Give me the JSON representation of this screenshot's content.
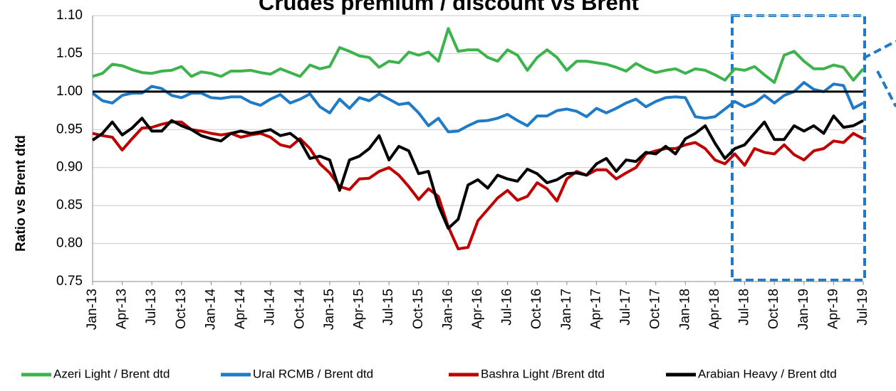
{
  "chart_data": {
    "type": "line",
    "title": "Crudes premium / discount vs Brent",
    "y_label": "Ratio vs Brent dtd",
    "categories": [
      "Jan-13",
      null,
      null,
      "Apr-13",
      null,
      null,
      "Jul-13",
      null,
      null,
      "Oct-13",
      null,
      null,
      "Jan-14",
      null,
      null,
      "Apr-14",
      null,
      null,
      "Jul-14",
      null,
      null,
      "Oct-14",
      null,
      null,
      "Jan-15",
      null,
      null,
      "Apr-15",
      null,
      null,
      "Jul-15",
      null,
      null,
      "Oct-15",
      null,
      null,
      "Jan-16",
      null,
      null,
      "Apr-16",
      null,
      null,
      "Jul-16",
      null,
      null,
      "Oct-16",
      null,
      null,
      "Jan-17",
      null,
      null,
      "Apr-17",
      null,
      null,
      "Jul-17",
      null,
      null,
      "Oct-17",
      null,
      null,
      "Jan-18",
      null,
      null,
      "Apr-18",
      null,
      null,
      "Jul-18",
      null,
      null,
      "Oct-18",
      null,
      null,
      "Jan-19",
      null,
      null,
      "Apr-19",
      null,
      null,
      "Jul-19"
    ],
    "series": [
      {
        "name": "Azeri Light / Brent dtd",
        "color": "#3cb44b",
        "values": [
          1.02,
          1.024,
          1.036,
          1.034,
          1.029,
          1.025,
          1.024,
          1.027,
          1.028,
          1.033,
          1.02,
          1.026,
          1.024,
          1.02,
          1.027,
          1.027,
          1.028,
          1.025,
          1.023,
          1.03,
          1.025,
          1.02,
          1.035,
          1.03,
          1.033,
          1.058,
          1.053,
          1.047,
          1.045,
          1.032,
          1.04,
          1.038,
          1.052,
          1.048,
          1.052,
          1.04,
          1.083,
          1.053,
          1.055,
          1.055,
          1.045,
          1.04,
          1.055,
          1.048,
          1.028,
          1.045,
          1.055,
          1.045,
          1.028,
          1.04,
          1.04,
          1.038,
          1.036,
          1.032,
          1.027,
          1.037,
          1.03,
          1.025,
          1.028,
          1.03,
          1.024,
          1.03,
          1.028,
          1.022,
          1.015,
          1.03,
          1.028,
          1.033,
          1.022,
          1.012,
          1.048,
          1.053,
          1.04,
          1.03,
          1.03,
          1.035,
          1.032,
          1.015,
          1.03
        ]
      },
      {
        "name": "Ural RCMB / Brent dtd",
        "color": "#1f7ac7",
        "values": [
          0.998,
          0.988,
          0.985,
          0.995,
          0.998,
          0.998,
          1.007,
          1.004,
          0.995,
          0.992,
          0.998,
          0.998,
          0.992,
          0.991,
          0.993,
          0.993,
          0.986,
          0.982,
          0.99,
          0.996,
          0.985,
          0.99,
          0.997,
          0.98,
          0.972,
          0.99,
          0.978,
          0.992,
          0.988,
          0.997,
          0.99,
          0.983,
          0.985,
          0.972,
          0.955,
          0.965,
          0.947,
          0.948,
          0.955,
          0.961,
          0.962,
          0.965,
          0.97,
          0.962,
          0.955,
          0.968,
          0.968,
          0.975,
          0.977,
          0.974,
          0.967,
          0.978,
          0.972,
          0.978,
          0.985,
          0.99,
          0.98,
          0.987,
          0.992,
          0.993,
          0.992,
          0.967,
          0.965,
          0.967,
          0.977,
          0.987,
          0.98,
          0.985,
          0.995,
          0.985,
          0.995,
          1.0,
          1.012,
          1.003,
          1.0,
          1.01,
          1.008,
          0.978,
          0.985
        ]
      },
      {
        "name": "Bashra Light /Brent dtd",
        "color": "#c00000",
        "values": [
          0.945,
          0.942,
          0.94,
          0.923,
          0.938,
          0.952,
          0.953,
          0.957,
          0.96,
          0.96,
          0.95,
          0.948,
          0.945,
          0.943,
          0.945,
          0.94,
          0.943,
          0.945,
          0.94,
          0.93,
          0.927,
          0.938,
          0.925,
          0.905,
          0.893,
          0.875,
          0.871,
          0.885,
          0.886,
          0.895,
          0.9,
          0.89,
          0.875,
          0.858,
          0.872,
          0.862,
          0.822,
          0.793,
          0.795,
          0.83,
          0.845,
          0.86,
          0.87,
          0.857,
          0.862,
          0.88,
          0.872,
          0.856,
          0.885,
          0.895,
          0.89,
          0.897,
          0.897,
          0.885,
          0.893,
          0.9,
          0.918,
          0.922,
          0.925,
          0.925,
          0.93,
          0.933,
          0.925,
          0.91,
          0.905,
          0.918,
          0.903,
          0.925,
          0.92,
          0.918,
          0.93,
          0.917,
          0.91,
          0.922,
          0.925,
          0.935,
          0.933,
          0.945,
          0.938
        ]
      },
      {
        "name": "Arabian Heavy / Brent dtd",
        "color": "#000000",
        "values": [
          0.936,
          0.945,
          0.96,
          0.943,
          0.952,
          0.965,
          0.948,
          0.948,
          0.962,
          0.955,
          0.95,
          0.942,
          0.938,
          0.935,
          0.945,
          0.948,
          0.945,
          0.947,
          0.95,
          0.942,
          0.945,
          0.935,
          0.912,
          0.915,
          0.91,
          0.87,
          0.91,
          0.915,
          0.925,
          0.942,
          0.91,
          0.928,
          0.922,
          0.892,
          0.895,
          0.85,
          0.82,
          0.832,
          0.877,
          0.884,
          0.873,
          0.89,
          0.885,
          0.882,
          0.898,
          0.892,
          0.88,
          0.884,
          0.892,
          0.893,
          0.89,
          0.905,
          0.912,
          0.895,
          0.91,
          0.908,
          0.92,
          0.918,
          0.928,
          0.918,
          0.938,
          0.945,
          0.955,
          0.932,
          0.912,
          0.925,
          0.93,
          0.945,
          0.96,
          0.937,
          0.937,
          0.955,
          0.948,
          0.955,
          0.945,
          0.968,
          0.953,
          0.955,
          0.962
        ]
      }
    ],
    "reference_line": 1.0,
    "reference_color": "#000000",
    "ylim": [
      0.75,
      1.1
    ],
    "yticks": [
      0.75,
      {
        "value": 0.8,
        "label": "0.80"
      },
      0.85,
      {
        "value": 0.9,
        "label": "0.90"
      },
      0.95,
      {
        "value": 1.0,
        "label": "1.00"
      },
      1.05,
      {
        "value": 1.1,
        "label": "1.10"
      }
    ],
    "grid": true,
    "legend": "bottom"
  }
}
